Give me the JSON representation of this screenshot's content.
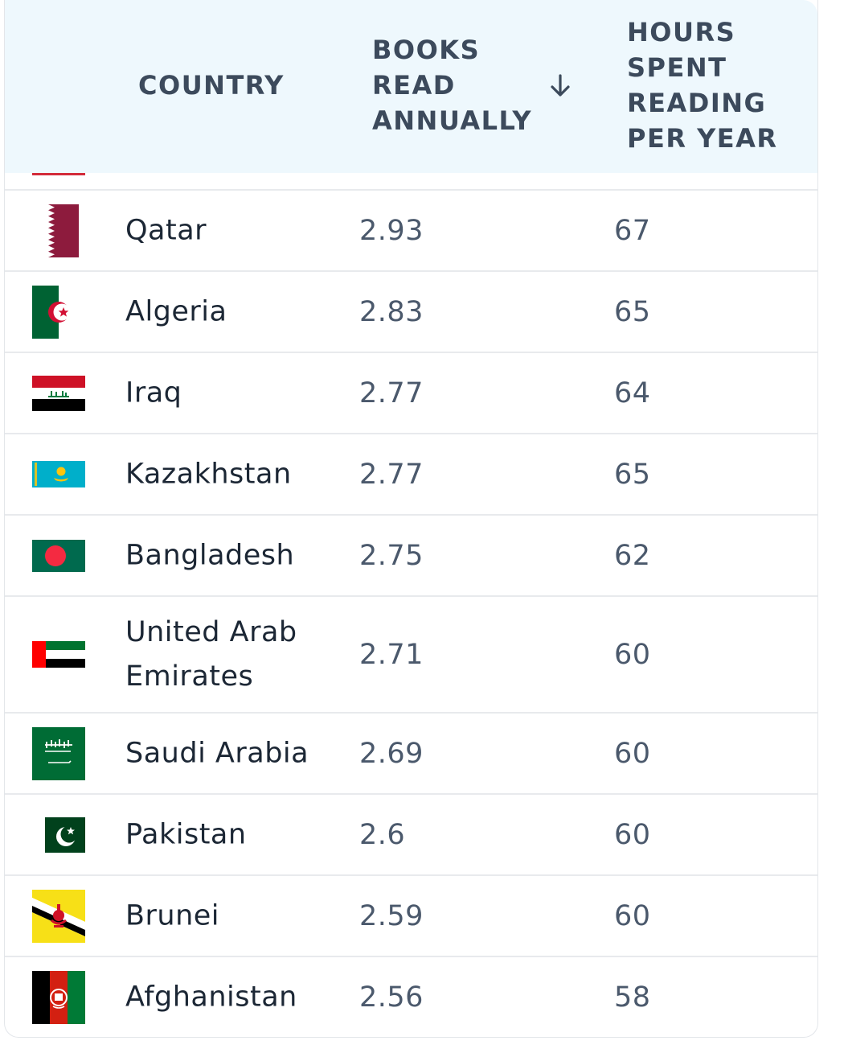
{
  "table": {
    "headers": {
      "country": "COUNTRY",
      "books": "BOOKS\nREAD\nANNUALLY",
      "hours": "HOURS\nSPENT\nREADING\nPER YEAR"
    },
    "sort": {
      "column": "books",
      "direction": "descending",
      "icon": "arrow-down-icon"
    },
    "rows": [
      {
        "country": "Qatar",
        "books": "2.93",
        "hours": "67",
        "flag": "qatar-flag-icon"
      },
      {
        "country": "Algeria",
        "books": "2.83",
        "hours": "65",
        "flag": "algeria-flag-icon"
      },
      {
        "country": "Iraq",
        "books": "2.77",
        "hours": "64",
        "flag": "iraq-flag-icon"
      },
      {
        "country": "Kazakhstan",
        "books": "2.77",
        "hours": "65",
        "flag": "kazakhstan-flag-icon"
      },
      {
        "country": "Bangladesh",
        "books": "2.75",
        "hours": "62",
        "flag": "bangladesh-flag-icon"
      },
      {
        "country": "United Arab Emirates",
        "books": "2.71",
        "hours": "60",
        "flag": "uae-flag-icon"
      },
      {
        "country": "Saudi Arabia",
        "books": "2.69",
        "hours": "60",
        "flag": "saudi-arabia-flag-icon"
      },
      {
        "country": "Pakistan",
        "books": "2.6",
        "hours": "60",
        "flag": "pakistan-flag-icon"
      },
      {
        "country": "Brunei",
        "books": "2.59",
        "hours": "60",
        "flag": "brunei-flag-icon"
      },
      {
        "country": "Afghanistan",
        "books": "2.56",
        "hours": "58",
        "flag": "afghanistan-flag-icon"
      }
    ]
  }
}
